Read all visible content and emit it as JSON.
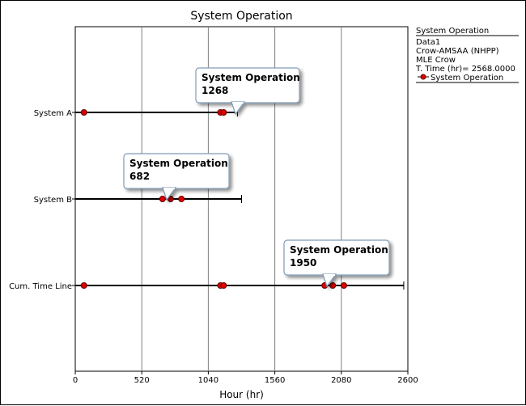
{
  "chart_data": {
    "type": "scatter",
    "title": "System Operation",
    "xlabel": "Hour (hr)",
    "ylabel": "",
    "xlim": [
      0,
      2600
    ],
    "x_ticks": [
      "0",
      "520",
      "1040",
      "1560",
      "2080",
      "2600"
    ],
    "x_tick_values": [
      0,
      520,
      1040,
      1560,
      2080,
      2600
    ],
    "grid": "vertical",
    "categories": [
      "System A",
      "System B",
      "Cum. Time Line"
    ],
    "series": [
      {
        "name": "System Operation",
        "color": "#e00000",
        "rows": [
          {
            "category": "System A",
            "end_time": 1268,
            "events": [
              68,
              1135,
              1160
            ]
          },
          {
            "category": "System B",
            "end_time": 1300,
            "events": [
              682,
              745,
              830
            ]
          },
          {
            "category": "Cum. Time Line",
            "end_time": 2568,
            "events": [
              68,
              1135,
              1160,
              1950,
              2013,
              2100
            ]
          }
        ]
      }
    ],
    "annotations": [
      {
        "title": "System Operation",
        "value": "1268",
        "row": "System A"
      },
      {
        "title": "System Operation",
        "value": "682",
        "row": "System B"
      },
      {
        "title": "System Operation",
        "value": "1950",
        "row": "Cum. Time Line"
      }
    ],
    "legend": {
      "placement": "right",
      "title": "System Operation",
      "lines": [
        "Data1",
        "Crow-AMSAA (NHPP)",
        "MLE Crow",
        "T. Time (hr)= 2568.0000"
      ],
      "series_label": "System Operation"
    }
  }
}
